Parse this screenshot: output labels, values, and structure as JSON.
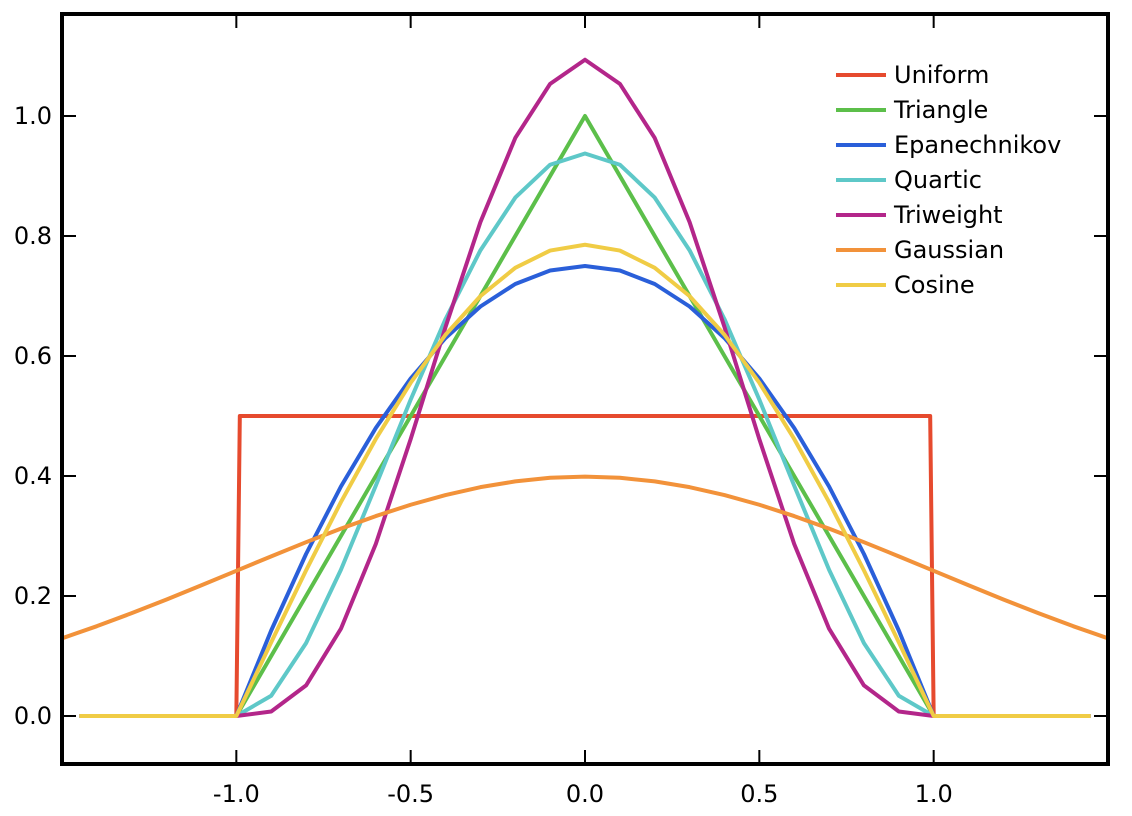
{
  "chart_data": {
    "type": "line",
    "title": "",
    "xlabel": "",
    "ylabel": "",
    "xlim": [
      -1.5,
      1.5
    ],
    "ylim": [
      -0.08,
      1.17
    ],
    "grid": false,
    "legend_position": "top-right",
    "x_ticks": [
      -1.0,
      -0.5,
      0.0,
      0.5,
      1.0
    ],
    "x_tick_labels": [
      "-1.0",
      "-0.5",
      "0.0",
      "0.5",
      "1.0"
    ],
    "y_ticks": [
      0.0,
      0.2,
      0.4,
      0.6,
      0.8,
      1.0
    ],
    "y_tick_labels": [
      "0.0",
      "0.2",
      "0.4",
      "0.6",
      "0.8",
      "1.0"
    ],
    "series": [
      {
        "name": "Uniform",
        "color": "#e64a2e",
        "x": [
          -1.45,
          -1.0,
          -0.99,
          0.99,
          1.0,
          1.45
        ],
        "y": [
          0.0,
          0.0,
          0.5,
          0.5,
          0.0,
          0.0
        ]
      },
      {
        "name": "Triangle",
        "color": "#5cbf4a",
        "x": [
          -1.45,
          -1.0,
          0.0,
          1.0,
          1.45
        ],
        "y": [
          0.0,
          0.0,
          1.0,
          0.0,
          0.0
        ]
      },
      {
        "name": "Epanechnikov",
        "color": "#2a5fd9",
        "x": [
          -1.45,
          -1.0,
          -0.9,
          -0.8,
          -0.7,
          -0.6,
          -0.5,
          -0.4,
          -0.3,
          -0.2,
          -0.1,
          0.0,
          0.1,
          0.2,
          0.3,
          0.4,
          0.5,
          0.6,
          0.7,
          0.8,
          0.9,
          1.0,
          1.45
        ],
        "y": [
          0.0,
          0.0,
          0.1425,
          0.27,
          0.3825,
          0.48,
          0.5625,
          0.63,
          0.6825,
          0.72,
          0.7425,
          0.75,
          0.7425,
          0.72,
          0.6825,
          0.63,
          0.5625,
          0.48,
          0.3825,
          0.27,
          0.1425,
          0.0,
          0.0
        ]
      },
      {
        "name": "Quartic",
        "color": "#5ec8c8",
        "x": [
          -1.45,
          -1.0,
          -0.9,
          -0.8,
          -0.7,
          -0.6,
          -0.5,
          -0.4,
          -0.3,
          -0.2,
          -0.1,
          0.0,
          0.1,
          0.2,
          0.3,
          0.4,
          0.5,
          0.6,
          0.7,
          0.8,
          0.9,
          1.0,
          1.45
        ],
        "y": [
          0.0,
          0.0,
          0.0338,
          0.1215,
          0.2438,
          0.384,
          0.5273,
          0.6615,
          0.7761,
          0.864,
          0.9188,
          0.9375,
          0.9188,
          0.864,
          0.7761,
          0.6615,
          0.5273,
          0.384,
          0.2438,
          0.1215,
          0.0338,
          0.0,
          0.0
        ]
      },
      {
        "name": "Triweight",
        "color": "#b3268a",
        "x": [
          -1.45,
          -1.0,
          -0.9,
          -0.8,
          -0.7,
          -0.6,
          -0.5,
          -0.4,
          -0.3,
          -0.2,
          -0.1,
          0.0,
          0.1,
          0.2,
          0.3,
          0.4,
          0.5,
          0.6,
          0.7,
          0.8,
          0.9,
          1.0,
          1.45
        ],
        "y": [
          0.0,
          0.0,
          0.0075,
          0.051,
          0.1455,
          0.2867,
          0.4614,
          0.6483,
          0.8231,
          0.9634,
          1.0536,
          1.0938,
          1.0536,
          0.9634,
          0.8231,
          0.6483,
          0.4614,
          0.2867,
          0.1455,
          0.051,
          0.0075,
          0.0,
          0.0
        ]
      },
      {
        "name": "Gaussian",
        "color": "#f2923a",
        "x": [
          -1.5,
          -1.4,
          -1.3,
          -1.2,
          -1.1,
          -1.0,
          -0.9,
          -0.8,
          -0.7,
          -0.6,
          -0.5,
          -0.4,
          -0.3,
          -0.2,
          -0.1,
          0.0,
          0.1,
          0.2,
          0.3,
          0.4,
          0.5,
          0.6,
          0.7,
          0.8,
          0.9,
          1.0,
          1.1,
          1.2,
          1.3,
          1.4,
          1.5
        ],
        "y": [
          0.1295,
          0.1497,
          0.1714,
          0.1942,
          0.2179,
          0.242,
          0.2661,
          0.2897,
          0.3123,
          0.3332,
          0.3521,
          0.3683,
          0.3814,
          0.391,
          0.397,
          0.3989,
          0.397,
          0.391,
          0.3814,
          0.3683,
          0.3521,
          0.3332,
          0.3123,
          0.2897,
          0.2661,
          0.242,
          0.2179,
          0.1942,
          0.1714,
          0.1497,
          0.1295
        ]
      },
      {
        "name": "Cosine",
        "color": "#f0cc45",
        "x": [
          -1.45,
          -1.0,
          -0.9,
          -0.8,
          -0.7,
          -0.6,
          -0.5,
          -0.4,
          -0.3,
          -0.2,
          -0.1,
          0.0,
          0.1,
          0.2,
          0.3,
          0.4,
          0.5,
          0.6,
          0.7,
          0.8,
          0.9,
          1.0,
          1.45
        ],
        "y": [
          0.0,
          0.0,
          0.1229,
          0.2427,
          0.3566,
          0.4617,
          0.5554,
          0.6354,
          0.6998,
          0.747,
          0.7757,
          0.7854,
          0.7757,
          0.747,
          0.6998,
          0.6354,
          0.5554,
          0.4617,
          0.3566,
          0.2427,
          0.1229,
          0.0,
          0.0
        ]
      }
    ]
  }
}
